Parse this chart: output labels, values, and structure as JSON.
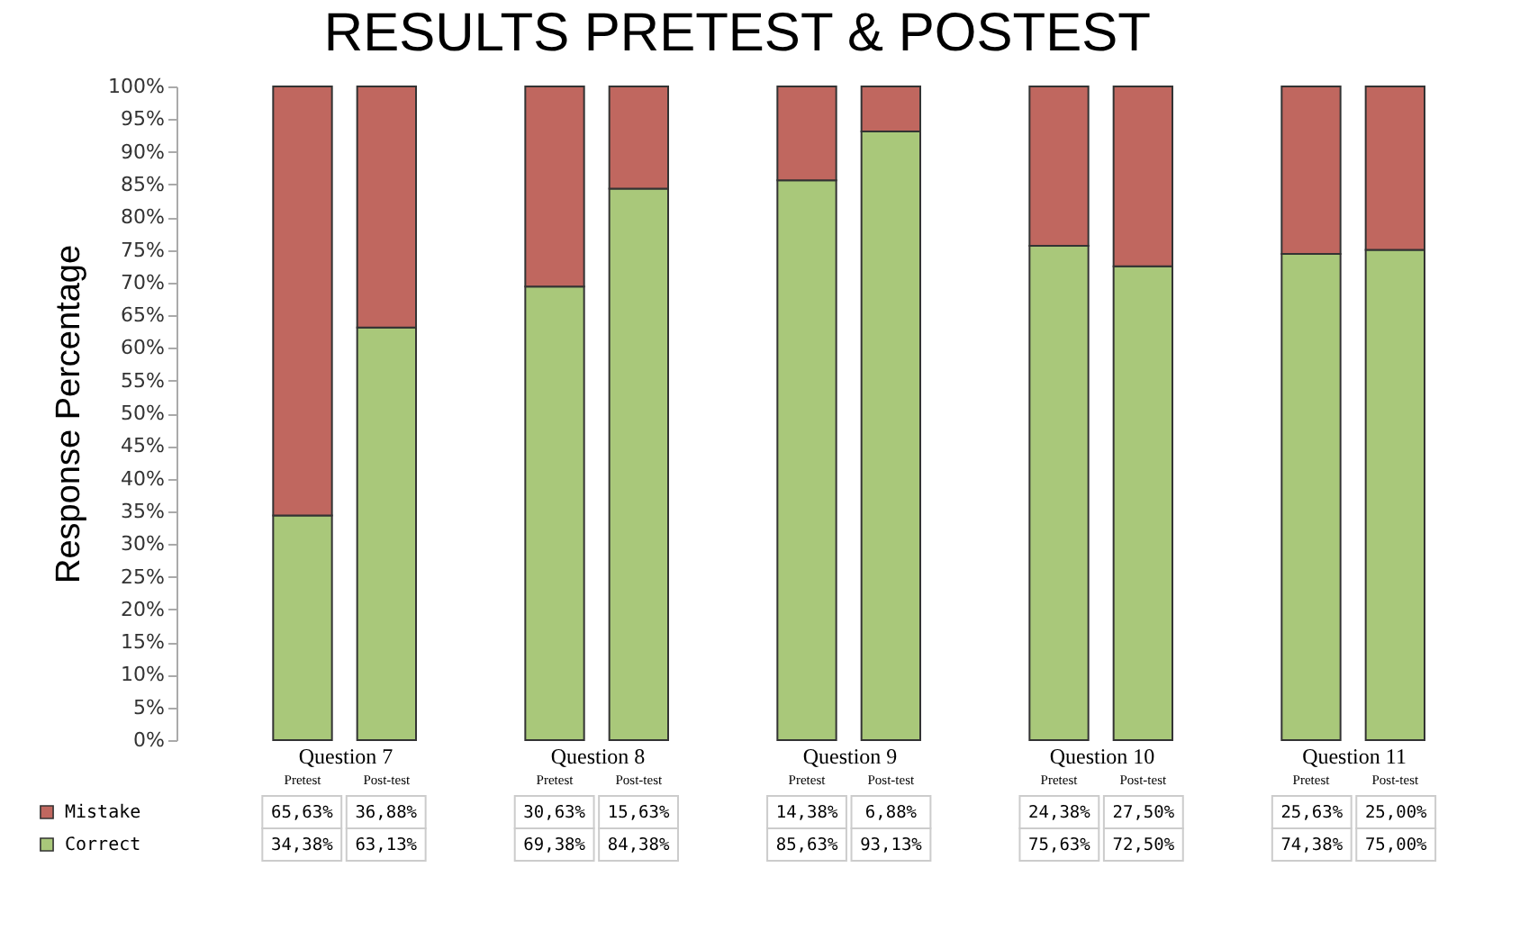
{
  "chart_data": {
    "type": "bar",
    "title": "RESULTS PRETEST & POSTEST",
    "ylabel": "Response Percentage",
    "categories": [
      "Pretest",
      "Post-test",
      "Pretest",
      "Post-test",
      "Pretest",
      "Post-test",
      "Pretest",
      "Post-test",
      "Pretest",
      "Post-test"
    ],
    "annotations": [
      "Question 7",
      "Question 8",
      "Question 9",
      "Question 10",
      "Question 11"
    ],
    "stacked": true,
    "series": [
      {
        "name": "Correct",
        "color": "#a9c87a",
        "values": [
          34.38,
          63.13,
          69.38,
          84.38,
          85.63,
          93.13,
          75.63,
          72.5,
          74.38,
          75.0
        ],
        "value_labels": [
          "34,38%",
          "63,13%",
          "69,38%",
          "84,38%",
          "85,63%",
          "93,13%",
          "75,63%",
          "72,50%",
          "74,38%",
          "75,00%"
        ]
      },
      {
        "name": "Mistake",
        "color": "#c0675f",
        "values": [
          65.63,
          36.88,
          30.63,
          15.63,
          14.38,
          6.88,
          24.38,
          27.5,
          25.63,
          25.0
        ],
        "value_labels": [
          "65,63%",
          "36,88%",
          "30,63%",
          "15,63%",
          "14,38%",
          "6,88%",
          "24,38%",
          "27,50%",
          "25,63%",
          "25,00%"
        ]
      }
    ],
    "ylim": [
      0,
      100
    ],
    "yticks": [
      {
        "value": 0,
        "label": "0%"
      },
      {
        "value": 5,
        "label": "5%"
      },
      {
        "value": 10,
        "label": "10%"
      },
      {
        "value": 15,
        "label": "15%"
      },
      {
        "value": 20,
        "label": "20%"
      },
      {
        "value": 25,
        "label": "25%"
      },
      {
        "value": 30,
        "label": "30%"
      },
      {
        "value": 35,
        "label": "35%"
      },
      {
        "value": 40,
        "label": "40%"
      },
      {
        "value": 45,
        "label": "45%"
      },
      {
        "value": 50,
        "label": "50%"
      },
      {
        "value": 55,
        "label": "55%"
      },
      {
        "value": 60,
        "label": "60%"
      },
      {
        "value": 65,
        "label": "65%"
      },
      {
        "value": 70,
        "label": "70%"
      },
      {
        "value": 75,
        "label": "75%"
      },
      {
        "value": 80,
        "label": "80%"
      },
      {
        "value": 85,
        "label": "85%"
      },
      {
        "value": 90,
        "label": "90%"
      },
      {
        "value": 95,
        "label": "95%"
      },
      {
        "value": 100,
        "label": "100%"
      }
    ],
    "grid": false,
    "legend": "bottom"
  }
}
